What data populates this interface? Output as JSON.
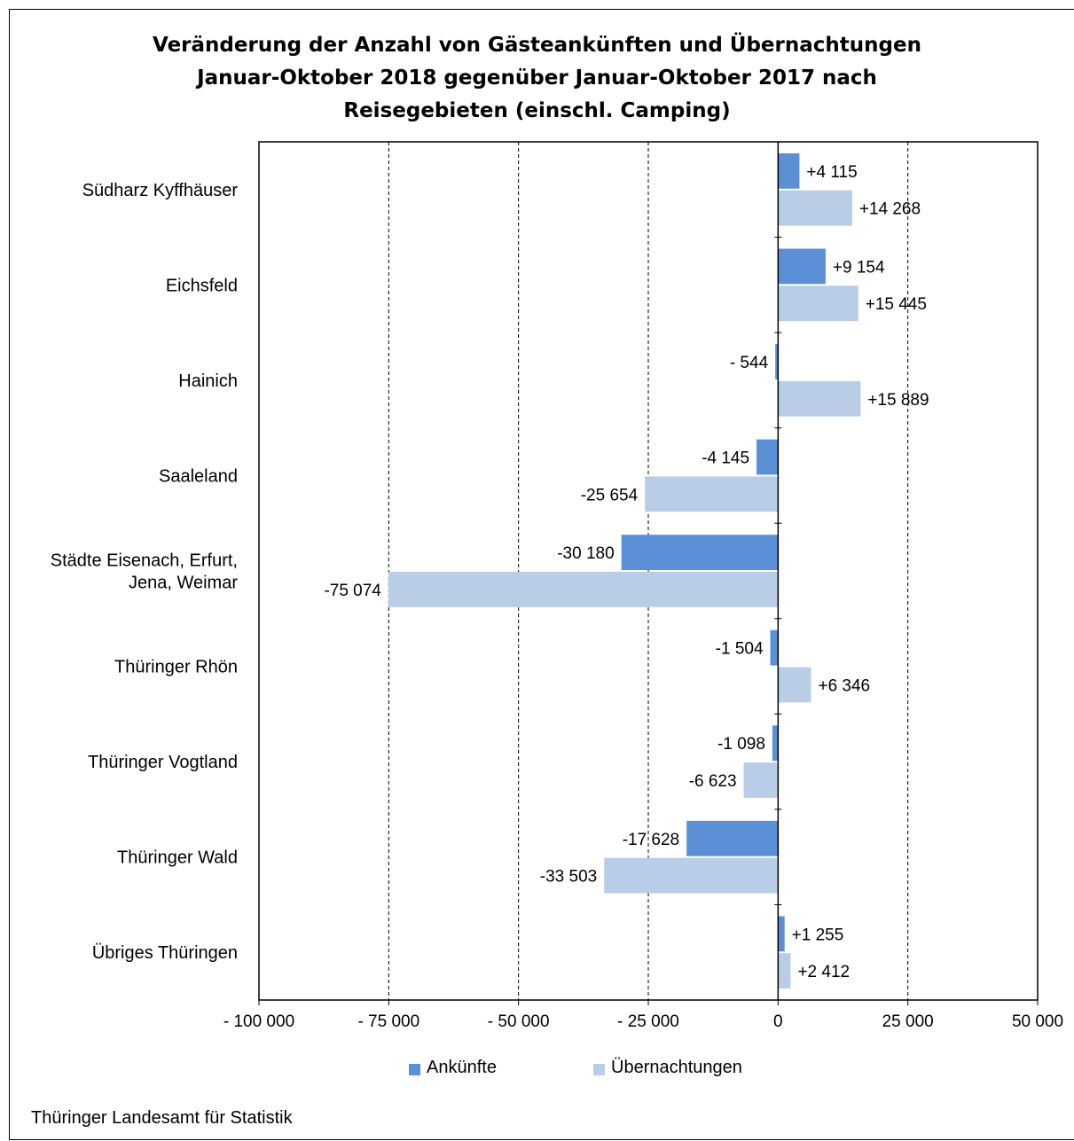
{
  "chart_data": {
    "type": "bar",
    "orientation": "horizontal",
    "title": [
      "Veränderung der Anzahl von Gästeankünften und Übernachtungen",
      "Januar-Oktober 2018 gegenüber Januar-Oktober 2017 nach",
      "Reisegebieten  (einschl. Camping)"
    ],
    "categories": [
      [
        "Südharz Kyffhäuser"
      ],
      [
        "Eichsfeld"
      ],
      [
        "Hainich"
      ],
      [
        "Saaleland"
      ],
      [
        "Städte Eisenach, Erfurt,",
        "Jena, Weimar"
      ],
      [
        "Thüringer Rhön"
      ],
      [
        "Thüringer Vogtland"
      ],
      [
        "Thüringer Wald"
      ],
      [
        "Übriges Thüringen"
      ]
    ],
    "series": [
      {
        "name": "Ankünfte",
        "color": "#5b8fd6",
        "values": [
          4115,
          9154,
          -544,
          -4145,
          -30180,
          -1504,
          -1098,
          -17628,
          1255
        ],
        "labels": [
          "+4 115",
          "+9 154",
          "- 544",
          "-4 145",
          "-30 180",
          "-1 504",
          "-1 098",
          "-17 628",
          "+1 255"
        ]
      },
      {
        "name": "Übernachtungen",
        "color": "#b9cde6",
        "values": [
          14268,
          15445,
          15889,
          -25654,
          -75074,
          6346,
          -6623,
          -33503,
          2412
        ],
        "labels": [
          "+14 268",
          "+15 445",
          "+15 889",
          "-25 654",
          "-75 074",
          "+6 346",
          "-6 623",
          "-33 503",
          "+2 412"
        ]
      }
    ],
    "xlim": [
      -100000,
      50000
    ],
    "xticks": [
      -100000,
      -75000,
      -50000,
      -25000,
      0,
      25000,
      50000
    ],
    "xtick_labels": [
      "- 100 000",
      "- 75 000",
      "- 50 000",
      "- 25 000",
      "0",
      "25 000",
      "50 000"
    ],
    "grid": "vertical dashed",
    "legend_position": "bottom"
  },
  "source": "Thüringer Landesamt für Statistik"
}
